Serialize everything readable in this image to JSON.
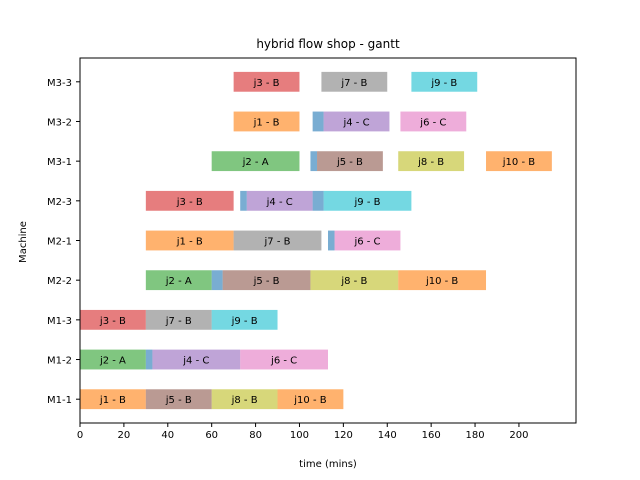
{
  "chart_data": {
    "type": "bar",
    "subtype": "gantt",
    "title": "hybrid flow shop - gantt",
    "xlabel": "time (mins)",
    "ylabel": "Machine",
    "xlim": [
      0,
      226
    ],
    "xticks": [
      0,
      20,
      40,
      60,
      80,
      100,
      120,
      140,
      160,
      180,
      200
    ],
    "grid": false,
    "machines": [
      "M1-1",
      "M1-2",
      "M1-3",
      "M2-2",
      "M2-1",
      "M2-3",
      "M3-1",
      "M3-2",
      "M3-3"
    ],
    "colors": {
      "j1": "#ff7f0e",
      "j2": "#2ca02c",
      "j3": "#d62728",
      "j4": "#9467bd",
      "j5": "#8c564b",
      "j6": "#e377c2",
      "j7": "#7f7f7f",
      "j8": "#bcbd22",
      "j9": "#17becf",
      "j10": "#ff7f0e",
      "setup": "#1f77b4"
    },
    "tasks": [
      {
        "machine": "M1-1",
        "job": "j1",
        "label": "j1 - B",
        "start": 0,
        "end": 30
      },
      {
        "machine": "M1-1",
        "job": "j5",
        "label": "j5 - B",
        "start": 30,
        "end": 60
      },
      {
        "machine": "M1-1",
        "job": "j8",
        "label": "j8 - B",
        "start": 60,
        "end": 90
      },
      {
        "machine": "M1-1",
        "job": "j10",
        "label": "j10 - B",
        "start": 90,
        "end": 120
      },
      {
        "machine": "M1-2",
        "job": "j2",
        "label": "j2 - A",
        "start": 0,
        "end": 30
      },
      {
        "machine": "M1-2",
        "job": "setup",
        "label": "",
        "start": 30,
        "end": 33
      },
      {
        "machine": "M1-2",
        "job": "j4",
        "label": "j4 - C",
        "start": 33,
        "end": 73
      },
      {
        "machine": "M1-2",
        "job": "j6",
        "label": "j6 - C",
        "start": 73,
        "end": 113
      },
      {
        "machine": "M1-3",
        "job": "j3",
        "label": "j3 - B",
        "start": 0,
        "end": 30
      },
      {
        "machine": "M1-3",
        "job": "j7",
        "label": "j7 - B",
        "start": 30,
        "end": 60
      },
      {
        "machine": "M1-3",
        "job": "j9",
        "label": "j9 - B",
        "start": 60,
        "end": 90
      },
      {
        "machine": "M2-2",
        "job": "j2",
        "label": "j2 - A",
        "start": 30,
        "end": 60
      },
      {
        "machine": "M2-2",
        "job": "setup",
        "label": "",
        "start": 60,
        "end": 65
      },
      {
        "machine": "M2-2",
        "job": "j5",
        "label": "j5 - B",
        "start": 65,
        "end": 105
      },
      {
        "machine": "M2-2",
        "job": "j8",
        "label": "j8 - B",
        "start": 105,
        "end": 145
      },
      {
        "machine": "M2-2",
        "job": "j10",
        "label": "j10 - B",
        "start": 145,
        "end": 185
      },
      {
        "machine": "M2-1",
        "job": "j1",
        "label": "j1 - B",
        "start": 30,
        "end": 70
      },
      {
        "machine": "M2-1",
        "job": "j7",
        "label": "j7 - B",
        "start": 70,
        "end": 110
      },
      {
        "machine": "M2-1",
        "job": "setup",
        "label": "",
        "start": 113,
        "end": 116
      },
      {
        "machine": "M2-1",
        "job": "j6",
        "label": "j6 - C",
        "start": 116,
        "end": 146
      },
      {
        "machine": "M2-3",
        "job": "j3",
        "label": "j3 - B",
        "start": 30,
        "end": 70
      },
      {
        "machine": "M2-3",
        "job": "setup",
        "label": "",
        "start": 73,
        "end": 76
      },
      {
        "machine": "M2-3",
        "job": "j4",
        "label": "j4 - C",
        "start": 76,
        "end": 106
      },
      {
        "machine": "M2-3",
        "job": "setup",
        "label": "",
        "start": 106,
        "end": 111
      },
      {
        "machine": "M2-3",
        "job": "j9",
        "label": "j9 - B",
        "start": 111,
        "end": 151
      },
      {
        "machine": "M3-1",
        "job": "j2",
        "label": "j2 - A",
        "start": 60,
        "end": 100
      },
      {
        "machine": "M3-1",
        "job": "setup",
        "label": "",
        "start": 105,
        "end": 108
      },
      {
        "machine": "M3-1",
        "job": "j5",
        "label": "j5 - B",
        "start": 108,
        "end": 138
      },
      {
        "machine": "M3-1",
        "job": "j8",
        "label": "j8 - B",
        "start": 145,
        "end": 175
      },
      {
        "machine": "M3-1",
        "job": "j10",
        "label": "j10 - B",
        "start": 185,
        "end": 215
      },
      {
        "machine": "M3-2",
        "job": "j1",
        "label": "j1 - B",
        "start": 70,
        "end": 100
      },
      {
        "machine": "M3-2",
        "job": "setup",
        "label": "",
        "start": 106,
        "end": 111
      },
      {
        "machine": "M3-2",
        "job": "j4",
        "label": "j4 - C",
        "start": 111,
        "end": 141
      },
      {
        "machine": "M3-2",
        "job": "j6",
        "label": "j6 - C",
        "start": 146,
        "end": 176
      },
      {
        "machine": "M3-3",
        "job": "j3",
        "label": "j3 - B",
        "start": 70,
        "end": 100
      },
      {
        "machine": "M3-3",
        "job": "j7",
        "label": "j7 - B",
        "start": 110,
        "end": 140
      },
      {
        "machine": "M3-3",
        "job": "j9",
        "label": "j9 - B",
        "start": 151,
        "end": 181
      }
    ]
  }
}
